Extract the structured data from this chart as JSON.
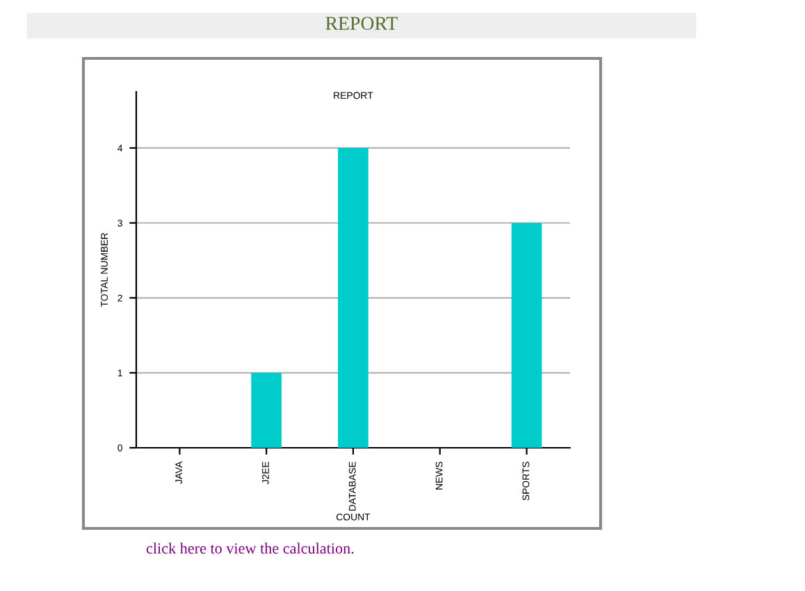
{
  "chart_data": {
    "type": "bar",
    "title": "REPORT",
    "subtitle": "REPORT",
    "xlabel": "COUNT",
    "ylabel": "TOTAL NUMBER",
    "categories": [
      "JAVA",
      "J2EE",
      "DATABASE",
      "NEWS",
      "SPORTS"
    ],
    "values": [
      0,
      1,
      4,
      0,
      3
    ],
    "color": "#00cccc",
    "ylim": [
      0,
      4.75
    ],
    "yticks": [
      0,
      1,
      2,
      3,
      4
    ],
    "grid": "y",
    "annotations": [
      "click here to view the calculation."
    ]
  }
}
